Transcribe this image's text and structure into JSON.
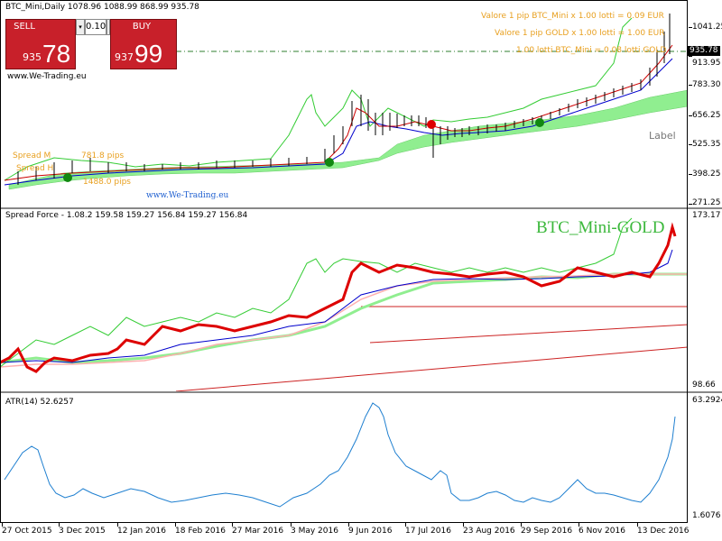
{
  "main": {
    "title": "BTC_Mini,Daily  1078.96 1088.99 868.99 935.78",
    "sell_label": "SELL",
    "buy_label": "BUY",
    "lot_value": "0.10",
    "sell_price_prefix": "935",
    "sell_price_big": "78",
    "buy_price_prefix": "937",
    "buy_price_big": "99",
    "watermark_top": "www.We-Trading.eu",
    "watermark_bottom": "www.We-Trading.eu",
    "info_lines": [
      "Valore 1 pip BTC_Mini x 1.00 lotti = 0.09 EUR",
      "Valore 1 pip GOLD x 1.00 lotti = 1.00 EUR",
      "1.00 lotti BTC_Mini = 0.08 lotti GOLD"
    ],
    "spread_labels": [
      "Spread M",
      "Spread H",
      "781.8 pips",
      "1488.0 pips"
    ],
    "chart_label": "Label",
    "current_price": "935.78",
    "scale": [
      "1041.25",
      "913.95",
      "783.30",
      "656.25",
      "525.35",
      "398.25",
      "271.25"
    ]
  },
  "spread": {
    "title": "Spread Force - 1.08.2 159.58 159.27 156.84 159.27 156.84",
    "overlay": "BTC_Mini-GOLD",
    "scale": [
      "173.17",
      "98.66"
    ]
  },
  "atr": {
    "title": "ATR(14) 52.6257",
    "scale": [
      "63.2924",
      "1.6076"
    ]
  },
  "dates": [
    "27 Oct 2015",
    "3 Dec 2015",
    "12 Jan 2016",
    "18 Feb 2016",
    "27 Mar 2016",
    "3 May 2016",
    "9 Jun 2016",
    "17 Jul 2016",
    "23 Aug 2016",
    "29 Sep 2016",
    "6 Nov 2016",
    "13 Dec 2016"
  ],
  "colors": {
    "sell": "#c8202a",
    "info_text": "#e8a020",
    "spread_overlay": "#3cb83c",
    "cloud": "#90ee90",
    "price_line": "#cc0000",
    "atr_line": "#1e7fd0"
  }
}
